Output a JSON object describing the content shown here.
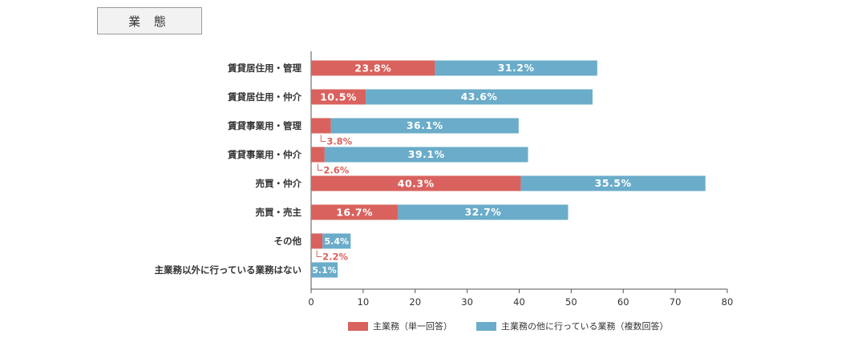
{
  "header": {
    "title": "業 態"
  },
  "chart_data": {
    "type": "bar",
    "orientation": "horizontal",
    "stacked": true,
    "title": "業態",
    "categories": [
      "賃貸居住用・管理",
      "賃貸居住用・仲介",
      "賃貸事業用・管理",
      "賃貸事業用・仲介",
      "売買・仲介",
      "売買・売主",
      "その他",
      "主業務以外に行っている業務はない"
    ],
    "series": [
      {
        "name": "主業務（単一回答）",
        "color": "#d9625e",
        "values": [
          23.8,
          10.5,
          3.8,
          2.6,
          40.3,
          16.7,
          2.2,
          null
        ],
        "labels": [
          "23.8%",
          "10.5%",
          "3.8%",
          "2.6%",
          "40.3%",
          "16.7%",
          "2.2%",
          ""
        ]
      },
      {
        "name": "主業務の他に行っている業務（複数回答）",
        "color": "#6aacc9",
        "values": [
          31.2,
          43.6,
          36.1,
          39.1,
          35.5,
          32.7,
          5.4,
          5.1
        ],
        "labels": [
          "31.2%",
          "43.6%",
          "36.1%",
          "39.1%",
          "35.5%",
          "32.7%",
          "5.4%",
          "5.1%"
        ]
      }
    ],
    "xlim": [
      0,
      80
    ],
    "xticks": [
      "0",
      "10",
      "20",
      "30",
      "40",
      "50",
      "60",
      "70",
      "80"
    ],
    "grid": false,
    "legend": "bottom"
  }
}
